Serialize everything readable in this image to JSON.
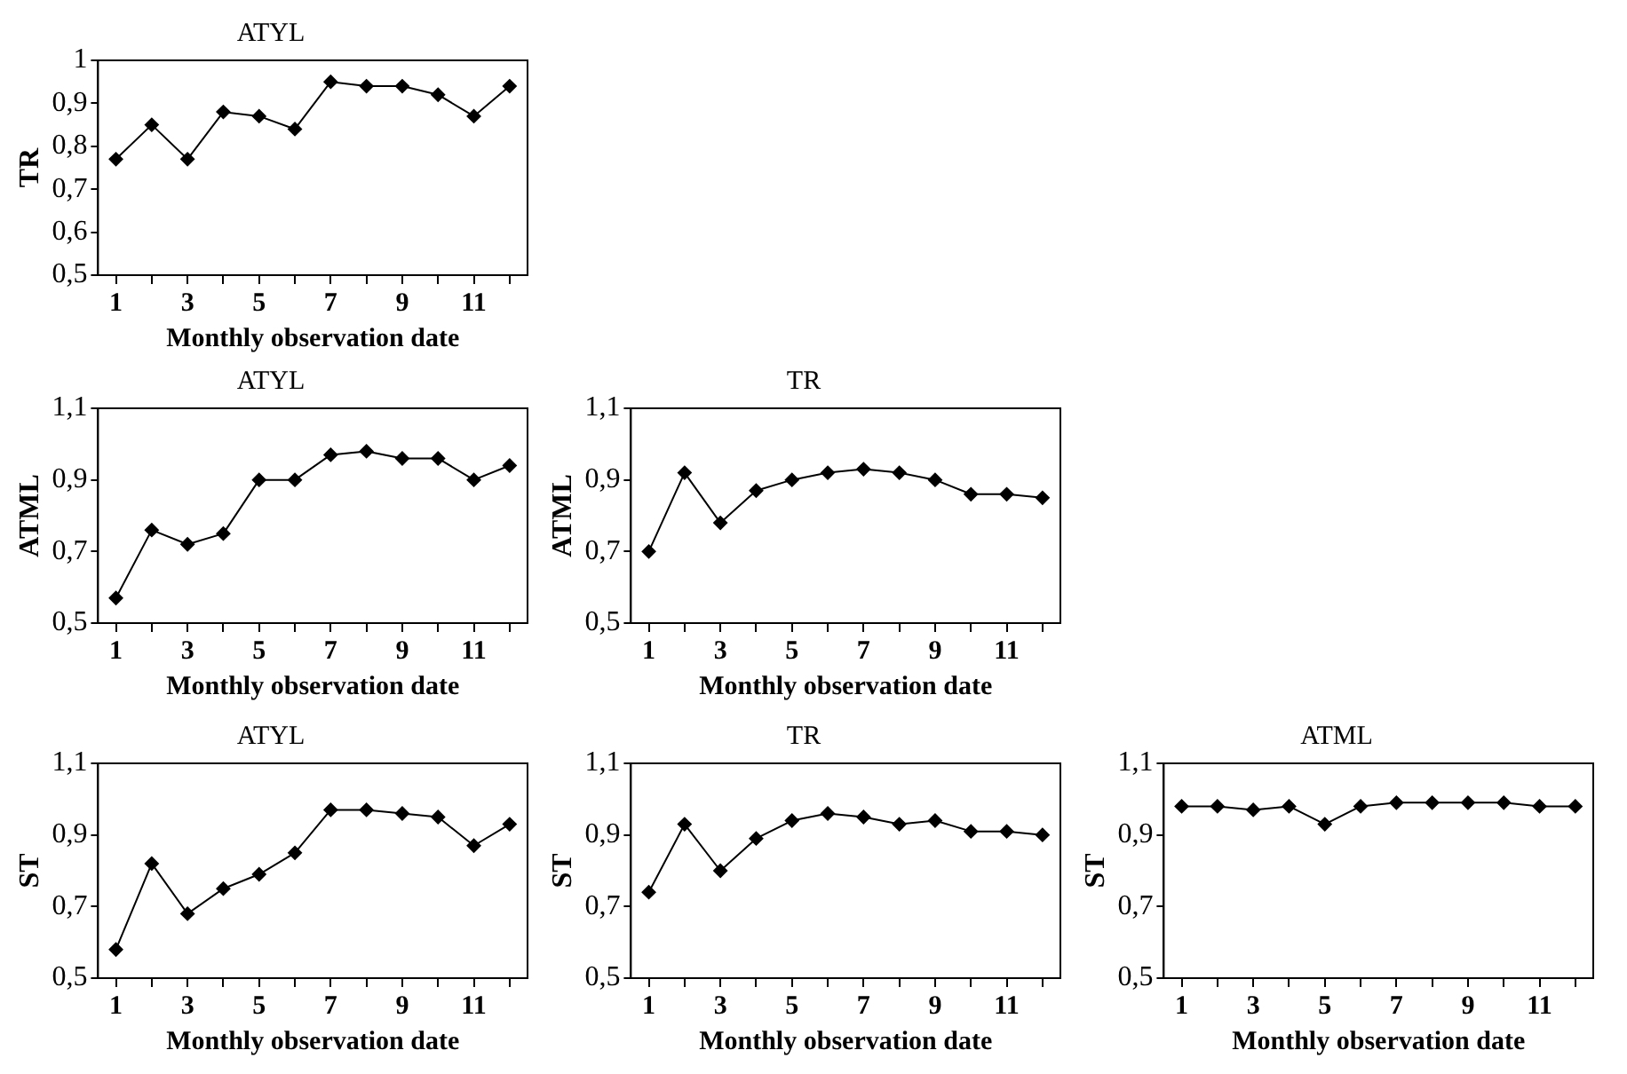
{
  "chart_data": [
    {
      "type": "line",
      "title": "ATYL",
      "xlabel": "Monthly observation date",
      "ylabel": "TR",
      "categories": [
        "1",
        null,
        "3",
        null,
        "5",
        null,
        "7",
        null,
        "9",
        null,
        "11",
        null
      ],
      "ylim": [
        0.5,
        1
      ],
      "yticks": [
        {
          "value": 0.5,
          "label": "0,5"
        },
        {
          "value": 0.6,
          "label": "0,6"
        },
        {
          "value": 0.7,
          "label": "0,7"
        },
        {
          "value": 0.8,
          "label": "0,8"
        },
        {
          "value": 0.9,
          "label": "0,9"
        },
        1
      ],
      "grid": false,
      "legend": false,
      "marker": "diamond",
      "line_style": "solid",
      "series": [
        {
          "color": "#000000",
          "values": [
            0.77,
            0.85,
            0.77,
            0.88,
            0.87,
            0.84,
            0.95,
            0.94,
            0.94,
            0.92,
            0.87,
            0.94
          ]
        }
      ]
    },
    {
      "type": "line",
      "title": "ATYL",
      "xlabel": "Monthly observation date",
      "ylabel": "ATML",
      "categories": [
        "1",
        null,
        "3",
        null,
        "5",
        null,
        "7",
        null,
        "9",
        null,
        "11",
        null
      ],
      "ylim": [
        0.5,
        1.1
      ],
      "yticks": [
        {
          "value": 0.5,
          "label": "0,5"
        },
        {
          "value": 0.7,
          "label": "0,7"
        },
        {
          "value": 0.9,
          "label": "0,9"
        },
        {
          "value": 1.1,
          "label": "1,1"
        }
      ],
      "grid": false,
      "legend": false,
      "marker": "diamond",
      "line_style": "solid",
      "series": [
        {
          "color": "#000000",
          "values": [
            0.57,
            0.76,
            0.72,
            0.75,
            0.9,
            0.9,
            0.97,
            0.98,
            0.96,
            0.96,
            0.9,
            0.94
          ]
        }
      ]
    },
    {
      "type": "line",
      "title": "TR",
      "xlabel": "Monthly observation date",
      "ylabel": "ATML",
      "categories": [
        "1",
        null,
        "3",
        null,
        "5",
        null,
        "7",
        null,
        "9",
        null,
        "11",
        null
      ],
      "ylim": [
        0.5,
        1.1
      ],
      "yticks": [
        {
          "value": 0.5,
          "label": "0,5"
        },
        {
          "value": 0.7,
          "label": "0,7"
        },
        {
          "value": 0.9,
          "label": "0,9"
        },
        {
          "value": 1.1,
          "label": "1,1"
        }
      ],
      "grid": false,
      "legend": false,
      "marker": "diamond",
      "line_style": "solid",
      "series": [
        {
          "color": "#000000",
          "values": [
            0.7,
            0.92,
            0.78,
            0.87,
            0.9,
            0.92,
            0.93,
            0.92,
            0.9,
            0.86,
            0.86,
            0.85
          ]
        }
      ]
    },
    {
      "type": "line",
      "title": "ATYL",
      "xlabel": "Monthly observation date",
      "ylabel": "ST",
      "categories": [
        "1",
        null,
        "3",
        null,
        "5",
        null,
        "7",
        null,
        "9",
        null,
        "11",
        null
      ],
      "ylim": [
        0.5,
        1.1
      ],
      "yticks": [
        {
          "value": 0.5,
          "label": "0,5"
        },
        {
          "value": 0.7,
          "label": "0,7"
        },
        {
          "value": 0.9,
          "label": "0,9"
        },
        {
          "value": 1.1,
          "label": "1,1"
        }
      ],
      "grid": false,
      "legend": false,
      "marker": "diamond",
      "line_style": "solid",
      "series": [
        {
          "color": "#000000",
          "values": [
            0.58,
            0.82,
            0.68,
            0.75,
            0.79,
            0.85,
            0.97,
            0.97,
            0.96,
            0.95,
            0.87,
            0.93
          ]
        }
      ]
    },
    {
      "type": "line",
      "title": "TR",
      "xlabel": "Monthly observation date",
      "ylabel": "ST",
      "categories": [
        "1",
        null,
        "3",
        null,
        "5",
        null,
        "7",
        null,
        "9",
        null,
        "11",
        null
      ],
      "ylim": [
        0.5,
        1.1
      ],
      "yticks": [
        {
          "value": 0.5,
          "label": "0,5"
        },
        {
          "value": 0.7,
          "label": "0,7"
        },
        {
          "value": 0.9,
          "label": "0,9"
        },
        {
          "value": 1.1,
          "label": "1,1"
        }
      ],
      "grid": false,
      "legend": false,
      "marker": "diamond",
      "line_style": "solid",
      "series": [
        {
          "color": "#000000",
          "values": [
            0.74,
            0.93,
            0.8,
            0.89,
            0.94,
            0.96,
            0.95,
            0.93,
            0.94,
            0.91,
            0.91,
            0.9
          ]
        }
      ]
    },
    {
      "type": "line",
      "title": "ATML",
      "xlabel": "Monthly observation date",
      "ylabel": "ST",
      "categories": [
        "1",
        null,
        "3",
        null,
        "5",
        null,
        "7",
        null,
        "9",
        null,
        "11",
        null
      ],
      "ylim": [
        0.5,
        1.1
      ],
      "yticks": [
        {
          "value": 0.5,
          "label": "0,5"
        },
        {
          "value": 0.7,
          "label": "0,7"
        },
        {
          "value": 0.9,
          "label": "0,9"
        },
        {
          "value": 1.1,
          "label": "1,1"
        }
      ],
      "grid": false,
      "legend": false,
      "marker": "diamond",
      "line_style": "solid",
      "series": [
        {
          "color": "#000000",
          "values": [
            0.98,
            0.98,
            0.97,
            0.98,
            0.93,
            0.98,
            0.99,
            0.99,
            0.99,
            0.99,
            0.98,
            0.98
          ]
        }
      ]
    }
  ]
}
